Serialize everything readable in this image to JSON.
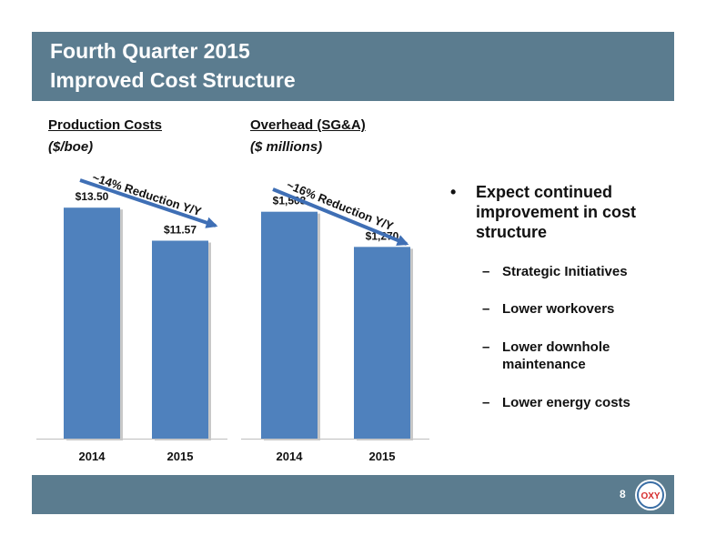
{
  "title": {
    "line1": "Fourth Quarter 2015",
    "line2": "Improved Cost Structure"
  },
  "page_number": "8",
  "logo": {
    "name": "oxy-logo",
    "text": "OXY"
  },
  "colors": {
    "band": "#5b7c8f",
    "bar": "#4f81bd",
    "arrow": "#3f6fb5"
  },
  "bullets": {
    "main": "Expect continued improvement in cost structure",
    "subs": [
      "Strategic Initiatives",
      "Lower workovers",
      "Lower downhole maintenance",
      "Lower energy costs"
    ]
  },
  "chart_data": [
    {
      "type": "bar",
      "title": "Production Costs",
      "subtitle": "($/boe)",
      "categories": [
        "2014",
        "2015"
      ],
      "values": [
        13.5,
        11.57
      ],
      "value_labels": [
        "$13.50",
        "$11.57"
      ],
      "annotation": "~14% Reduction Y/Y",
      "ylim": [
        0,
        15
      ]
    },
    {
      "type": "bar",
      "title": "Overhead (SG&A)",
      "subtitle": "($ millions)",
      "categories": [
        "2014",
        "2015"
      ],
      "values": [
        1503,
        1270
      ],
      "value_labels": [
        "$1,503",
        "$1,270"
      ],
      "annotation": "~16% Reduction Y/Y",
      "ylim": [
        0,
        1700
      ]
    }
  ]
}
